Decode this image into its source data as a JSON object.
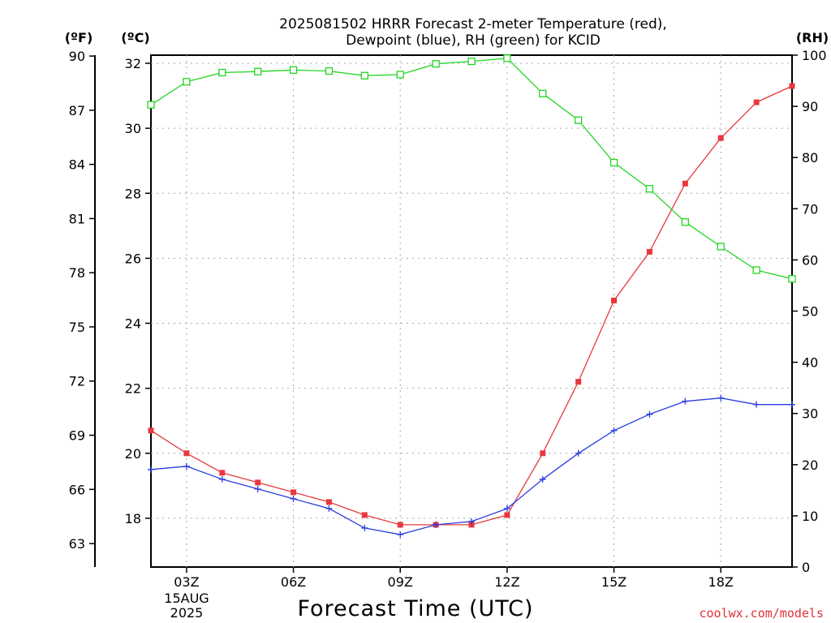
{
  "chart_data": {
    "type": "line",
    "title_line1": "2025081502 HRRR Forecast 2-meter Temperature (red),",
    "title_line2": "Dewpoint (blue), RH (green) for KCID",
    "xlabel": "Forecast Time (UTC)",
    "date_label": [
      "15AUG",
      "2025"
    ],
    "credit": "coolwx.com/models",
    "unit_labels": {
      "fahrenheit": "(ºF)",
      "celsius": "(ºC)",
      "rh": "(RH)"
    },
    "x_hours": [
      2,
      3,
      4,
      5,
      6,
      7,
      8,
      9,
      10,
      11,
      12,
      13,
      14,
      15,
      16,
      17,
      18,
      19,
      20
    ],
    "x_range": [
      2,
      20
    ],
    "x_ticks": [
      {
        "hour": 3,
        "label": "03Z"
      },
      {
        "hour": 6,
        "label": "06Z"
      },
      {
        "hour": 9,
        "label": "09Z"
      },
      {
        "hour": 12,
        "label": "12Z"
      },
      {
        "hour": 15,
        "label": "15Z"
      },
      {
        "hour": 18,
        "label": "18Z"
      }
    ],
    "celsius_axis": {
      "range": [
        16.5,
        32.25
      ],
      "ticks": [
        "18",
        "20",
        "22",
        "24",
        "26",
        "28",
        "30",
        "32"
      ]
    },
    "fahrenheit_axis": {
      "ticks": [
        "63",
        "66",
        "69",
        "72",
        "75",
        "78",
        "81",
        "84",
        "87",
        "90"
      ]
    },
    "rh_axis": {
      "range": [
        0,
        100
      ],
      "ticks": [
        "0",
        "10",
        "20",
        "30",
        "40",
        "50",
        "60",
        "70",
        "80",
        "90",
        "100"
      ]
    },
    "grid": true,
    "series": [
      {
        "name": "Temperature",
        "unit": "C",
        "color": "#e8383e",
        "marker": "filled-square",
        "values": [
          20.7,
          20.0,
          19.4,
          19.1,
          18.8,
          18.5,
          18.1,
          17.8,
          17.8,
          17.8,
          18.1,
          20.0,
          22.2,
          24.7,
          26.2,
          28.3,
          29.7,
          30.8,
          31.3
        ]
      },
      {
        "name": "Dewpoint",
        "unit": "C",
        "color": "#2a3de0",
        "marker": "plus",
        "values": [
          19.5,
          19.6,
          19.2,
          18.9,
          18.6,
          18.3,
          17.7,
          17.5,
          17.8,
          17.9,
          18.3,
          19.2,
          20.0,
          20.7,
          21.2,
          21.6,
          21.7,
          21.5,
          21.5
        ]
      },
      {
        "name": "RH",
        "unit": "%",
        "color": "#22d622",
        "marker": "open-square",
        "values": [
          90.3,
          94.8,
          96.6,
          96.8,
          97.1,
          96.9,
          96.0,
          96.2,
          98.3,
          98.8,
          99.4,
          92.5,
          87.3,
          79.0,
          73.9,
          67.4,
          62.6,
          58.0,
          56.3
        ]
      }
    ]
  }
}
